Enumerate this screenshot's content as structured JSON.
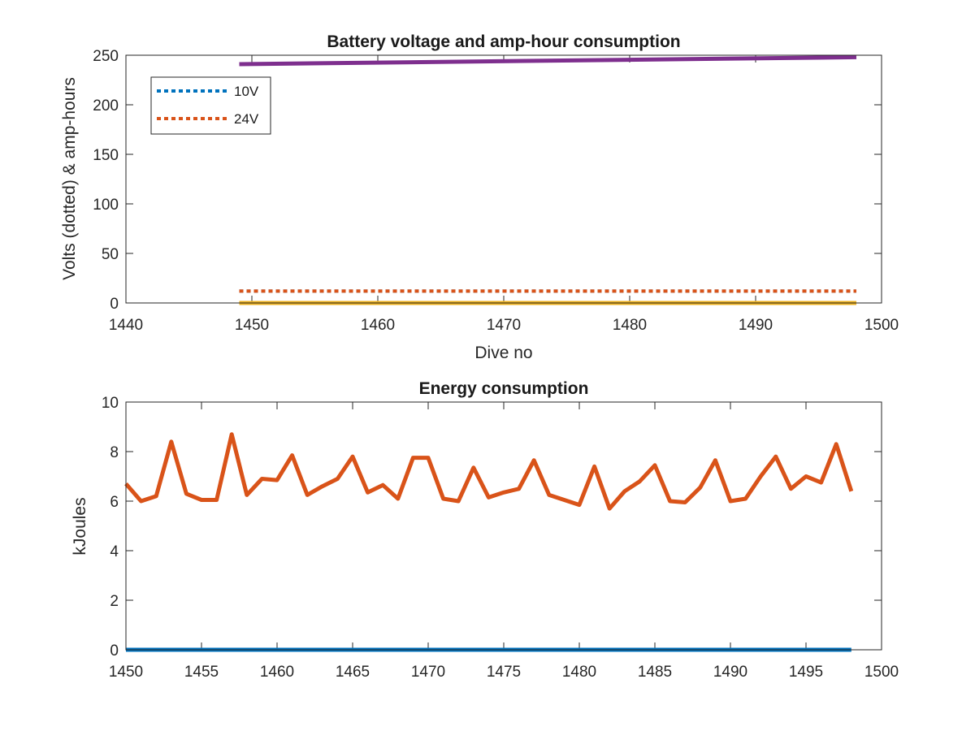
{
  "chart_data": [
    {
      "type": "line",
      "title": "Battery voltage and amp-hour consumption",
      "xlabel": "Dive no",
      "ylabel": "Volts (dotted) & amp-hours",
      "xlim": [
        1440,
        1500
      ],
      "ylim": [
        0,
        250
      ],
      "xticks": [
        1440,
        1450,
        1460,
        1470,
        1480,
        1490,
        1500
      ],
      "yticks": [
        0,
        50,
        100,
        150,
        200,
        250
      ],
      "grid": false,
      "legend_position": "top-left",
      "series": [
        {
          "name": "10V",
          "style": "dotted",
          "color": "#0072bd",
          "in_legend": true,
          "x": [
            1449,
            1498
          ],
          "y": [
            12,
            12
          ]
        },
        {
          "name": "24V",
          "style": "dotted",
          "color": "#d95319",
          "in_legend": true,
          "x": [
            1449,
            1498
          ],
          "y": [
            12,
            12
          ]
        },
        {
          "name": "",
          "style": "solid",
          "color": "#edb120",
          "in_legend": false,
          "x": [
            1449,
            1498
          ],
          "y": [
            0,
            0
          ]
        },
        {
          "name": "",
          "style": "solid",
          "color": "#7e2f8e",
          "in_legend": false,
          "x": [
            1449,
            1498
          ],
          "y": [
            241,
            248
          ]
        }
      ]
    },
    {
      "type": "line",
      "title": "Energy consumption",
      "xlabel": "",
      "ylabel": "kJoules",
      "xlim": [
        1450,
        1500
      ],
      "ylim": [
        0,
        10
      ],
      "xticks": [
        1450,
        1455,
        1460,
        1465,
        1470,
        1475,
        1480,
        1485,
        1490,
        1495,
        1500
      ],
      "yticks": [
        0,
        2,
        4,
        6,
        8,
        10
      ],
      "grid": false,
      "series": [
        {
          "name": "",
          "style": "solid",
          "color": "#d95319",
          "x": [
            1450,
            1451,
            1452,
            1453,
            1454,
            1455,
            1456,
            1457,
            1458,
            1459,
            1460,
            1461,
            1462,
            1463,
            1464,
            1465,
            1466,
            1467,
            1468,
            1469,
            1470,
            1471,
            1472,
            1473,
            1474,
            1475,
            1476,
            1477,
            1478,
            1479,
            1480,
            1481,
            1482,
            1483,
            1484,
            1485,
            1486,
            1487,
            1488,
            1489,
            1490,
            1491,
            1492,
            1493,
            1494,
            1495,
            1496,
            1497,
            1498
          ],
          "y": [
            6.7,
            6.0,
            6.2,
            8.4,
            6.3,
            6.05,
            6.05,
            8.7,
            6.25,
            6.9,
            6.85,
            7.85,
            6.25,
            6.6,
            6.9,
            7.8,
            6.35,
            6.65,
            6.1,
            7.75,
            7.75,
            6.1,
            6.0,
            7.35,
            6.15,
            6.35,
            6.5,
            7.65,
            6.25,
            6.05,
            5.85,
            7.4,
            5.7,
            6.4,
            6.8,
            7.45,
            6.0,
            5.95,
            6.55,
            7.65,
            6.0,
            6.1,
            7.0,
            7.8,
            6.5,
            7.0,
            6.75,
            8.3,
            6.4
          ]
        },
        {
          "name": "",
          "style": "solid",
          "color": "#0072bd",
          "x": [
            1450,
            1498
          ],
          "y": [
            0,
            0
          ]
        }
      ]
    }
  ]
}
